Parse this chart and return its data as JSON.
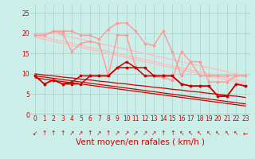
{
  "xlabel": "Vent moyen/en rafales ( km/h )",
  "background_color": "#cceee8",
  "grid_color": "#b0d8d0",
  "lines": [
    {
      "y": [
        19.5,
        19.5,
        20.5,
        20.0,
        15.5,
        17.5,
        18.0,
        17.5,
        9.5,
        19.5,
        19.5,
        11.5,
        9.5,
        9.5,
        9.0,
        8.5,
        15.5,
        13.0,
        13.0,
        8.0,
        8.0,
        8.0,
        9.5,
        9.5
      ],
      "color": "#ff9999",
      "lw": 1.0,
      "marker": "s",
      "ms": 2.0
    },
    {
      "y": [
        19.5,
        19.5,
        20.5,
        20.5,
        20.5,
        19.5,
        19.5,
        18.5,
        21.0,
        22.5,
        22.5,
        20.5,
        17.5,
        17.0,
        20.5,
        15.5,
        9.5,
        13.0,
        9.5,
        9.5,
        9.5,
        9.5,
        9.5,
        9.5
      ],
      "color": "#ff9999",
      "lw": 1.0,
      "marker": "s",
      "ms": 2.0
    },
    {
      "y": [
        20.0,
        20.0,
        20.0,
        19.5,
        19.0,
        18.5,
        18.0,
        17.5,
        17.0,
        16.5,
        16.0,
        15.5,
        15.0,
        14.5,
        14.0,
        13.5,
        13.0,
        12.5,
        12.0,
        11.5,
        11.0,
        10.5,
        10.0,
        9.5
      ],
      "color": "#ffbbbb",
      "lw": 0.9,
      "marker": null,
      "ms": 0
    },
    {
      "y": [
        19.5,
        19.0,
        18.5,
        18.0,
        17.5,
        17.0,
        16.5,
        16.0,
        15.5,
        15.0,
        14.5,
        14.0,
        13.5,
        13.0,
        12.5,
        12.0,
        11.5,
        11.0,
        10.5,
        10.0,
        9.5,
        9.0,
        8.5,
        8.0
      ],
      "color": "#ffbbbb",
      "lw": 0.9,
      "marker": null,
      "ms": 0
    },
    {
      "y": [
        19.0,
        18.5,
        18.0,
        17.5,
        17.0,
        16.5,
        16.0,
        15.5,
        15.0,
        14.5,
        14.0,
        13.5,
        13.0,
        12.5,
        12.0,
        11.5,
        11.0,
        10.5,
        10.0,
        9.5,
        9.0,
        8.5,
        8.0,
        7.5
      ],
      "color": "#ffbbbb",
      "lw": 0.9,
      "marker": null,
      "ms": 0
    },
    {
      "y": [
        9.5,
        7.5,
        8.5,
        7.5,
        8.0,
        9.5,
        9.5,
        9.5,
        9.5,
        11.5,
        13.0,
        11.5,
        11.5,
        9.5,
        9.5,
        9.5,
        7.5,
        7.0,
        7.0,
        7.0,
        4.5,
        4.5,
        7.5,
        7.0
      ],
      "color": "#cc0000",
      "lw": 1.1,
      "marker": "s",
      "ms": 2.0
    },
    {
      "y": [
        9.5,
        7.5,
        8.5,
        7.5,
        7.5,
        7.5,
        9.5,
        9.5,
        9.5,
        11.5,
        11.5,
        11.5,
        9.5,
        9.5,
        9.5,
        9.5,
        7.5,
        7.0,
        7.0,
        7.0,
        4.5,
        4.5,
        7.5,
        7.0
      ],
      "color": "#cc0000",
      "lw": 1.1,
      "marker": "s",
      "ms": 2.0
    },
    {
      "y": [
        10.0,
        9.7,
        9.5,
        9.2,
        9.0,
        8.7,
        8.5,
        8.2,
        8.0,
        7.7,
        7.5,
        7.2,
        7.0,
        6.7,
        6.5,
        6.2,
        6.0,
        5.7,
        5.5,
        5.2,
        5.0,
        4.7,
        4.5,
        4.2
      ],
      "color": "#cc0000",
      "lw": 0.9,
      "marker": null,
      "ms": 0
    },
    {
      "y": [
        9.5,
        9.2,
        8.9,
        8.6,
        8.3,
        8.0,
        7.7,
        7.4,
        7.1,
        6.8,
        6.5,
        6.2,
        5.9,
        5.6,
        5.3,
        5.0,
        4.7,
        4.4,
        4.1,
        3.8,
        3.5,
        3.2,
        2.9,
        2.6
      ],
      "color": "#cc0000",
      "lw": 0.9,
      "marker": null,
      "ms": 0
    },
    {
      "y": [
        9.0,
        8.7,
        8.4,
        8.1,
        7.8,
        7.5,
        7.2,
        6.9,
        6.6,
        6.3,
        6.0,
        5.7,
        5.4,
        5.1,
        4.8,
        4.5,
        4.2,
        3.9,
        3.6,
        3.3,
        3.0,
        2.7,
        2.4,
        2.1
      ],
      "color": "#cc0000",
      "lw": 0.9,
      "marker": null,
      "ms": 0
    }
  ],
  "wind_symbols": [
    "↙",
    "↑",
    "↑",
    "↑",
    "↗",
    "↗",
    "↑",
    "↗",
    "↑",
    "↗",
    "↗",
    "↗",
    "↗",
    "↗",
    "↑",
    "↑",
    "↖",
    "↖",
    "↖",
    "↖",
    "↖",
    "↖",
    "↖",
    "←"
  ],
  "xtick_labels": [
    "0",
    "1",
    "2",
    "3",
    "4",
    "5",
    "6",
    "7",
    "8",
    "9",
    "10",
    "11",
    "12",
    "13",
    "14",
    "15",
    "16",
    "17",
    "18",
    "19",
    "20",
    "21",
    "22",
    "23"
  ],
  "ytick_values": [
    0,
    5,
    10,
    15,
    20,
    25
  ],
  "xlabel_color": "#cc0000",
  "tick_label_color": "#cc0000",
  "tick_fontsize": 5.5,
  "xlabel_fontsize": 7.5,
  "arrow_fontsize": 5.5
}
